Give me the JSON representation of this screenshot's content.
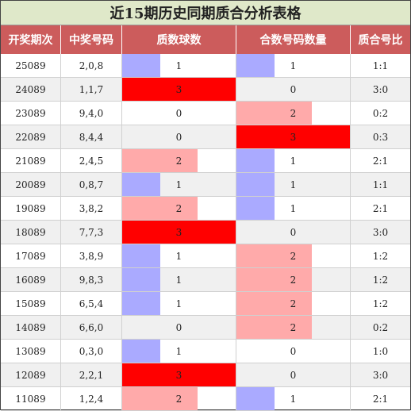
{
  "title": "近15期历史同期质合分析表格",
  "colors": {
    "header_bg": "#cc5c5c",
    "title_bg": "#dfe8c9",
    "bar_1": "#aaaaff",
    "bar_2": "#ffaaaa",
    "bar_3": "#ff0000"
  },
  "headers": [
    "开奖期次",
    "中奖号码",
    "质数球数",
    "合数号码数量",
    "质合号比"
  ],
  "rows": [
    {
      "period": "25089",
      "numbers": "2,0,8",
      "prime": "1",
      "composite": "1",
      "ratio": "1:1"
    },
    {
      "period": "24089",
      "numbers": "1,1,7",
      "prime": "3",
      "composite": "0",
      "ratio": "3:0"
    },
    {
      "period": "23089",
      "numbers": "9,4,0",
      "prime": "0",
      "composite": "2",
      "ratio": "0:2"
    },
    {
      "period": "22089",
      "numbers": "8,4,4",
      "prime": "0",
      "composite": "3",
      "ratio": "0:3"
    },
    {
      "period": "21089",
      "numbers": "2,4,5",
      "prime": "2",
      "composite": "1",
      "ratio": "2:1"
    },
    {
      "period": "20089",
      "numbers": "0,8,7",
      "prime": "1",
      "composite": "1",
      "ratio": "1:1"
    },
    {
      "period": "19089",
      "numbers": "3,8,2",
      "prime": "2",
      "composite": "1",
      "ratio": "2:1"
    },
    {
      "period": "18089",
      "numbers": "7,7,3",
      "prime": "3",
      "composite": "0",
      "ratio": "3:0"
    },
    {
      "period": "17089",
      "numbers": "3,8,9",
      "prime": "1",
      "composite": "2",
      "ratio": "1:2"
    },
    {
      "period": "16089",
      "numbers": "9,8,3",
      "prime": "1",
      "composite": "2",
      "ratio": "1:2"
    },
    {
      "period": "15089",
      "numbers": "6,5,4",
      "prime": "1",
      "composite": "2",
      "ratio": "1:2"
    },
    {
      "period": "14089",
      "numbers": "6,6,0",
      "prime": "0",
      "composite": "2",
      "ratio": "0:2"
    },
    {
      "period": "13089",
      "numbers": "0,3,0",
      "prime": "1",
      "composite": "0",
      "ratio": "1:0"
    },
    {
      "period": "12089",
      "numbers": "2,2,1",
      "prime": "3",
      "composite": "0",
      "ratio": "3:0"
    },
    {
      "period": "11089",
      "numbers": "1,2,4",
      "prime": "2",
      "composite": "1",
      "ratio": "2:1"
    }
  ]
}
